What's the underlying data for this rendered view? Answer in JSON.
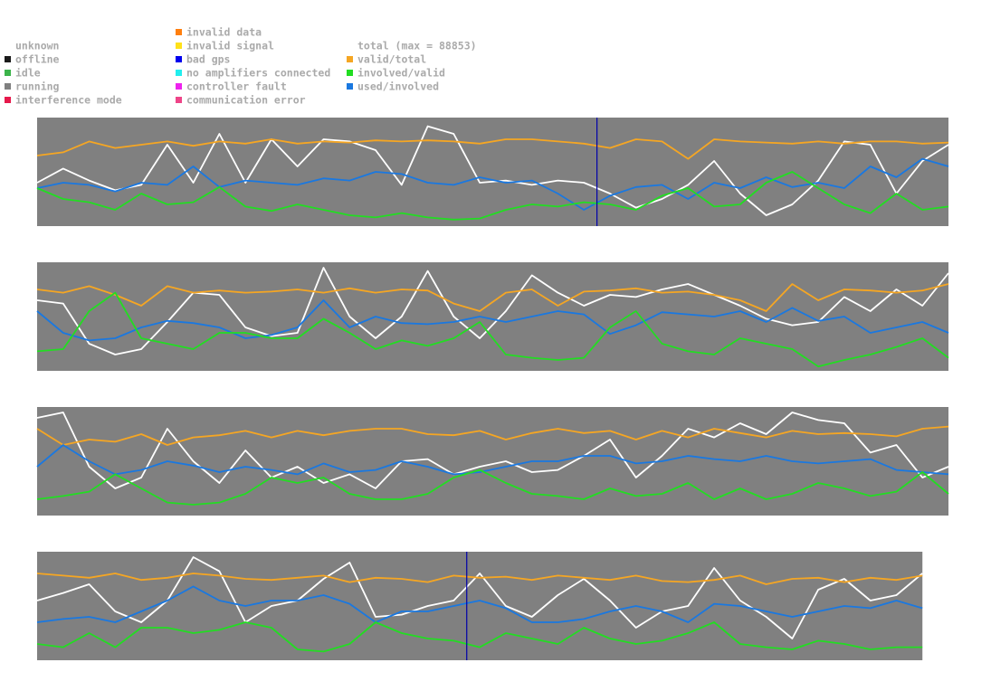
{
  "legend": {
    "columns": [
      [
        {
          "label": "unknown",
          "color": null
        },
        {
          "label": "offline",
          "color": "#1a1a1a"
        },
        {
          "label": "idle",
          "color": "#3cb44b"
        },
        {
          "label": "running",
          "color": "#808080"
        },
        {
          "label": "interference mode",
          "color": "#e6194b"
        }
      ],
      [
        {
          "label": "invalid data",
          "color": "#ff7f0e"
        },
        {
          "label": "invalid signal",
          "color": "#ffe119"
        },
        {
          "label": "bad gps",
          "color": "#0000ee"
        },
        {
          "label": "no amplifiers connected",
          "color": "#22eeee"
        },
        {
          "label": "controller fault",
          "color": "#ee22ee"
        },
        {
          "label": "communication error",
          "color": "#ee4488"
        }
      ],
      [
        {
          "label": "total (max = 88853)",
          "color": null
        },
        {
          "label": "valid/total",
          "color": "#f5a623"
        },
        {
          "label": "involved/valid",
          "color": "#22dd22"
        },
        {
          "label": "used/involved",
          "color": "#1a78e0"
        }
      ]
    ]
  },
  "chart_data": [
    {
      "type": "line",
      "ylim": [
        0,
        1
      ],
      "background": "#808080",
      "marker_color": "#0000aa",
      "markers": [
        21.5
      ],
      "series": [
        {
          "color": "#ffffff",
          "values": [
            0.4,
            0.53,
            0.42,
            0.33,
            0.38,
            0.75,
            0.4,
            0.85,
            0.4,
            0.8,
            0.55,
            0.8,
            0.78,
            0.7,
            0.38,
            0.92,
            0.85,
            0.4,
            0.42,
            0.38,
            0.42,
            0.4,
            0.3,
            0.17,
            0.25,
            0.38,
            0.6,
            0.3,
            0.1,
            0.2,
            0.42,
            0.78,
            0.75,
            0.3,
            0.6,
            0.75
          ]
        },
        {
          "color": "#f5a623",
          "values": [
            0.65,
            0.68,
            0.78,
            0.72,
            0.75,
            0.78,
            0.74,
            0.78,
            0.76,
            0.8,
            0.76,
            0.78,
            0.77,
            0.79,
            0.78,
            0.79,
            0.78,
            0.76,
            0.8,
            0.8,
            0.78,
            0.76,
            0.72,
            0.8,
            0.78,
            0.62,
            0.8,
            0.78,
            0.77,
            0.76,
            0.78,
            0.76,
            0.78,
            0.78,
            0.76,
            0.77
          ]
        },
        {
          "color": "#1a78e0",
          "values": [
            0.35,
            0.4,
            0.38,
            0.32,
            0.4,
            0.38,
            0.55,
            0.36,
            0.42,
            0.4,
            0.38,
            0.44,
            0.42,
            0.5,
            0.48,
            0.4,
            0.38,
            0.45,
            0.4,
            0.42,
            0.3,
            0.15,
            0.28,
            0.36,
            0.38,
            0.25,
            0.4,
            0.35,
            0.45,
            0.36,
            0.4,
            0.35,
            0.55,
            0.45,
            0.62,
            0.55
          ]
        },
        {
          "color": "#22dd22",
          "values": [
            0.35,
            0.25,
            0.22,
            0.15,
            0.3,
            0.2,
            0.22,
            0.36,
            0.18,
            0.14,
            0.2,
            0.15,
            0.1,
            0.08,
            0.12,
            0.08,
            0.06,
            0.07,
            0.15,
            0.2,
            0.18,
            0.22,
            0.2,
            0.15,
            0.28,
            0.35,
            0.18,
            0.2,
            0.4,
            0.5,
            0.35,
            0.2,
            0.12,
            0.3,
            0.15,
            0.18
          ]
        }
      ]
    },
    {
      "type": "line",
      "ylim": [
        0,
        1
      ],
      "background": "#808080",
      "series": [
        {
          "color": "#ffffff",
          "values": [
            0.65,
            0.62,
            0.25,
            0.15,
            0.2,
            0.45,
            0.72,
            0.7,
            0.4,
            0.32,
            0.35,
            0.95,
            0.5,
            0.3,
            0.5,
            0.92,
            0.5,
            0.3,
            0.55,
            0.88,
            0.72,
            0.6,
            0.7,
            0.68,
            0.75,
            0.8,
            0.7,
            0.6,
            0.48,
            0.42,
            0.45,
            0.68,
            0.55,
            0.75,
            0.6,
            0.9
          ]
        },
        {
          "color": "#f5a623",
          "values": [
            0.75,
            0.72,
            0.78,
            0.7,
            0.6,
            0.78,
            0.72,
            0.74,
            0.72,
            0.73,
            0.75,
            0.72,
            0.76,
            0.72,
            0.75,
            0.74,
            0.62,
            0.55,
            0.72,
            0.75,
            0.6,
            0.73,
            0.74,
            0.76,
            0.72,
            0.73,
            0.7,
            0.65,
            0.55,
            0.8,
            0.65,
            0.75,
            0.74,
            0.72,
            0.74,
            0.8
          ]
        },
        {
          "color": "#1a78e0",
          "values": [
            0.55,
            0.35,
            0.28,
            0.3,
            0.4,
            0.46,
            0.44,
            0.4,
            0.3,
            0.33,
            0.4,
            0.65,
            0.4,
            0.5,
            0.44,
            0.43,
            0.45,
            0.5,
            0.45,
            0.5,
            0.55,
            0.52,
            0.34,
            0.42,
            0.54,
            0.52,
            0.5,
            0.55,
            0.45,
            0.58,
            0.46,
            0.5,
            0.35,
            0.4,
            0.45,
            0.35
          ]
        },
        {
          "color": "#22dd22",
          "values": [
            0.18,
            0.2,
            0.55,
            0.72,
            0.3,
            0.25,
            0.2,
            0.35,
            0.35,
            0.3,
            0.3,
            0.48,
            0.35,
            0.2,
            0.28,
            0.23,
            0.3,
            0.45,
            0.15,
            0.12,
            0.1,
            0.12,
            0.4,
            0.55,
            0.25,
            0.18,
            0.15,
            0.3,
            0.25,
            0.2,
            0.04,
            0.1,
            0.15,
            0.22,
            0.3,
            0.12
          ]
        }
      ]
    },
    {
      "type": "line",
      "ylim": [
        0,
        1
      ],
      "background": "#808080",
      "series": [
        {
          "color": "#ffffff",
          "values": [
            0.9,
            0.95,
            0.45,
            0.25,
            0.35,
            0.8,
            0.5,
            0.3,
            0.6,
            0.35,
            0.45,
            0.3,
            0.38,
            0.25,
            0.5,
            0.52,
            0.38,
            0.45,
            0.5,
            0.4,
            0.42,
            0.55,
            0.7,
            0.35,
            0.55,
            0.8,
            0.72,
            0.85,
            0.75,
            0.95,
            0.88,
            0.85,
            0.58,
            0.65,
            0.35,
            0.45
          ]
        },
        {
          "color": "#f5a623",
          "values": [
            0.8,
            0.65,
            0.7,
            0.68,
            0.75,
            0.65,
            0.72,
            0.74,
            0.78,
            0.72,
            0.78,
            0.74,
            0.78,
            0.8,
            0.8,
            0.75,
            0.74,
            0.78,
            0.7,
            0.76,
            0.8,
            0.76,
            0.78,
            0.7,
            0.78,
            0.72,
            0.8,
            0.76,
            0.72,
            0.78,
            0.75,
            0.76,
            0.75,
            0.73,
            0.8,
            0.82
          ]
        },
        {
          "color": "#1a78e0",
          "values": [
            0.45,
            0.65,
            0.5,
            0.38,
            0.42,
            0.5,
            0.46,
            0.4,
            0.45,
            0.42,
            0.38,
            0.48,
            0.4,
            0.42,
            0.5,
            0.45,
            0.38,
            0.4,
            0.45,
            0.5,
            0.5,
            0.55,
            0.55,
            0.48,
            0.5,
            0.55,
            0.52,
            0.5,
            0.55,
            0.5,
            0.48,
            0.5,
            0.52,
            0.42,
            0.4,
            0.38
          ]
        },
        {
          "color": "#22dd22",
          "values": [
            0.15,
            0.18,
            0.22,
            0.38,
            0.25,
            0.12,
            0.1,
            0.12,
            0.2,
            0.35,
            0.3,
            0.35,
            0.2,
            0.15,
            0.15,
            0.2,
            0.35,
            0.42,
            0.3,
            0.2,
            0.18,
            0.15,
            0.25,
            0.18,
            0.2,
            0.3,
            0.15,
            0.25,
            0.15,
            0.2,
            0.3,
            0.25,
            0.18,
            0.22,
            0.4,
            0.2
          ]
        }
      ]
    },
    {
      "type": "line",
      "ylim": [
        0,
        1
      ],
      "background": "#808080",
      "marker_color": "#0000aa",
      "markers": [
        16.5
      ],
      "series": [
        {
          "color": "#ffffff",
          "values": [
            0.55,
            0.62,
            0.7,
            0.45,
            0.35,
            0.55,
            0.95,
            0.82,
            0.35,
            0.5,
            0.55,
            0.75,
            0.9,
            0.4,
            0.42,
            0.5,
            0.55,
            0.8,
            0.5,
            0.4,
            0.6,
            0.75,
            0.55,
            0.3,
            0.45,
            0.5,
            0.85,
            0.55,
            0.4,
            0.2,
            0.65,
            0.75,
            0.55,
            0.6,
            0.8
          ]
        },
        {
          "color": "#f5a623",
          "values": [
            0.8,
            0.78,
            0.76,
            0.8,
            0.74,
            0.76,
            0.8,
            0.78,
            0.75,
            0.74,
            0.76,
            0.78,
            0.72,
            0.76,
            0.75,
            0.72,
            0.78,
            0.76,
            0.77,
            0.74,
            0.78,
            0.76,
            0.74,
            0.78,
            0.73,
            0.72,
            0.74,
            0.78,
            0.7,
            0.75,
            0.76,
            0.72,
            0.76,
            0.74,
            0.78
          ]
        },
        {
          "color": "#1a78e0",
          "values": [
            0.35,
            0.38,
            0.4,
            0.35,
            0.45,
            0.55,
            0.68,
            0.55,
            0.5,
            0.55,
            0.55,
            0.6,
            0.52,
            0.35,
            0.45,
            0.45,
            0.5,
            0.55,
            0.48,
            0.35,
            0.35,
            0.38,
            0.45,
            0.5,
            0.45,
            0.35,
            0.52,
            0.5,
            0.45,
            0.4,
            0.45,
            0.5,
            0.48,
            0.55,
            0.48
          ]
        },
        {
          "color": "#22dd22",
          "values": [
            0.15,
            0.12,
            0.25,
            0.12,
            0.3,
            0.3,
            0.25,
            0.28,
            0.35,
            0.3,
            0.1,
            0.08,
            0.15,
            0.35,
            0.25,
            0.2,
            0.18,
            0.12,
            0.25,
            0.2,
            0.15,
            0.3,
            0.2,
            0.15,
            0.18,
            0.25,
            0.35,
            0.15,
            0.12,
            0.1,
            0.18,
            0.15,
            0.1,
            0.12,
            0.12
          ]
        }
      ]
    }
  ]
}
